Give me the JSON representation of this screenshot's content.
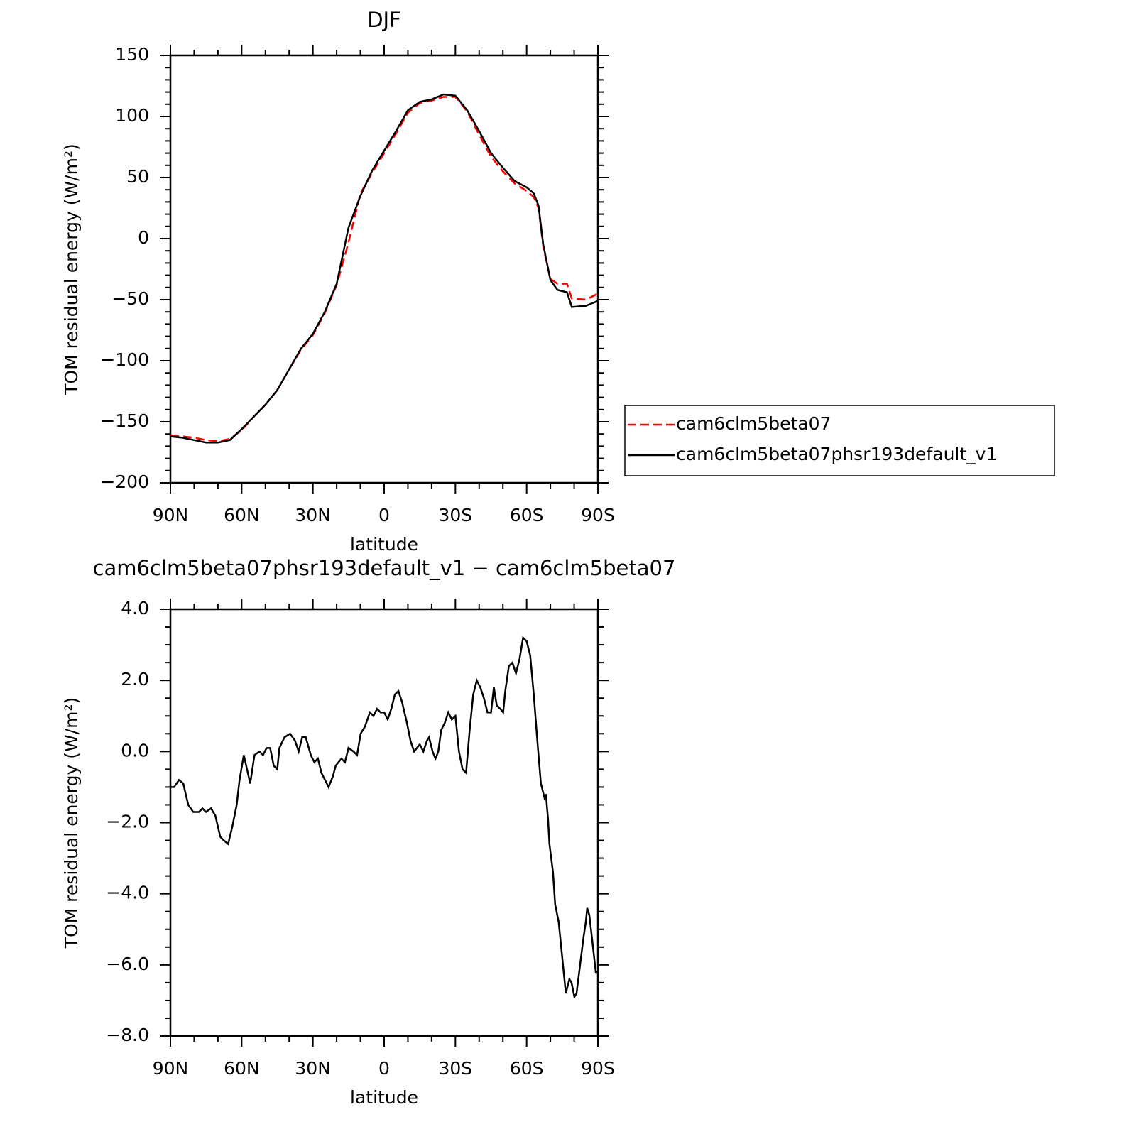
{
  "chart_data": [
    {
      "type": "line",
      "title": "DJF",
      "xlabel": "latitude",
      "ylabel": "TOM residual energy (W/m²)",
      "xlim": [
        90,
        -90
      ],
      "xticks": [
        {
          "value": 90,
          "label": "90N"
        },
        {
          "value": 60,
          "label": "60N"
        },
        {
          "value": 30,
          "label": "30N"
        },
        0,
        {
          "value": -30,
          "label": "30S"
        },
        {
          "value": -60,
          "label": "60S"
        },
        {
          "value": -90,
          "label": "90S"
        }
      ],
      "xminorticks": [
        80,
        70,
        50,
        40,
        20,
        10,
        -10,
        -20,
        -40,
        -50,
        -70,
        -80
      ],
      "ylim": [
        -200,
        150
      ],
      "yticks": [
        {
          "value": -200,
          "label": "−200"
        },
        {
          "value": -150,
          "label": "−150"
        },
        {
          "value": -100,
          "label": "−100"
        },
        {
          "value": -50,
          "label": "−50"
        },
        0,
        50,
        100,
        150
      ],
      "yminorticks": [
        -190,
        -180,
        -170,
        -160,
        -140,
        -130,
        -120,
        -110,
        -90,
        -80,
        -70,
        -60,
        -40,
        -30,
        -20,
        -10,
        10,
        20,
        30,
        40,
        60,
        70,
        80,
        90,
        110,
        120,
        130,
        140
      ],
      "legend": "right",
      "x": [
        90,
        85,
        80,
        75,
        70,
        65,
        60,
        55,
        50,
        45,
        40,
        35,
        30,
        25,
        20,
        15,
        10,
        5,
        0,
        -5,
        -10,
        -15,
        -20,
        -25,
        -30,
        -35,
        -40,
        -45,
        -50,
        -55,
        -60,
        -63,
        -65,
        -67,
        -70,
        -73,
        -77,
        -79,
        -85,
        -90
      ],
      "series": [
        {
          "name": "cam6clm5beta07",
          "color": "#ff0000",
          "style": "dashed",
          "values": [
            -161,
            -162,
            -163,
            -165,
            -166,
            -164,
            -157,
            -146,
            -136,
            -124,
            -107,
            -91,
            -79,
            -61,
            -38,
            -3,
            37,
            54,
            70,
            86,
            103,
            111,
            113,
            116,
            116,
            104,
            85,
            67,
            55,
            45,
            39,
            34,
            25,
            -7,
            -33,
            -37,
            -37,
            -49,
            -50,
            -45
          ]
        },
        {
          "name": "cam6clm5beta07phsr193default_v1",
          "color": "#000000",
          "style": "solid",
          "values": [
            -162,
            -163,
            -165,
            -167,
            -167,
            -165,
            -156,
            -146,
            -136,
            -124,
            -107,
            -90,
            -78,
            -60,
            -37,
            9,
            35,
            56,
            72,
            88,
            105,
            112,
            114,
            118,
            117,
            105,
            88,
            70,
            58,
            47,
            42,
            37,
            27,
            -5,
            -34,
            -42,
            -44,
            -56,
            -55,
            -51
          ]
        }
      ]
    },
    {
      "type": "line",
      "title": "cam6clm5beta07phsr193default_v1 − cam6clm5beta07",
      "xlabel": "latitude",
      "ylabel": "TOM residual energy (W/m²)",
      "xlim": [
        90,
        -90
      ],
      "xticks": [
        {
          "value": 90,
          "label": "90N"
        },
        {
          "value": 60,
          "label": "60N"
        },
        {
          "value": 30,
          "label": "30N"
        },
        0,
        {
          "value": -30,
          "label": "30S"
        },
        {
          "value": -60,
          "label": "60S"
        },
        {
          "value": -90,
          "label": "90S"
        }
      ],
      "xminorticks": [
        80,
        70,
        50,
        40,
        20,
        10,
        -10,
        -20,
        -40,
        -50,
        -70,
        -80
      ],
      "ylim": [
        -8,
        4
      ],
      "yticks": [
        {
          "value": -8,
          "label": "−8.0"
        },
        {
          "value": -6,
          "label": "−6.0"
        },
        {
          "value": -4,
          "label": "−4.0"
        },
        {
          "value": -2,
          "label": "−2.0"
        },
        {
          "value": 0,
          "label": "0.0"
        },
        {
          "value": 2,
          "label": "2.0"
        },
        {
          "value": 4,
          "label": "4.0"
        }
      ],
      "yminorticks": [
        3.5,
        3,
        2.5,
        1.5,
        1,
        0.5,
        -0.5,
        -1,
        -1.5,
        -2.5,
        -3,
        -3.5,
        -4.5,
        -5,
        -5.5,
        -6.5,
        -7,
        -7.5
      ],
      "color": "#000000",
      "x": [
        90,
        88.5,
        86.4,
        84.6,
        82.5,
        80.4,
        78,
        76.5,
        75,
        72.9,
        71.1,
        69,
        67.5,
        65.7,
        63.9,
        62.1,
        60.9,
        59.1,
        56.4,
        54.6,
        52.5,
        51,
        49.5,
        48,
        46.5,
        45,
        44.1,
        42,
        39.6,
        37.5,
        36,
        34.5,
        33,
        30.9,
        29.4,
        27.9,
        26.4,
        24.9,
        23.4,
        21.6,
        20.4,
        18,
        16.5,
        15,
        12.9,
        11.4,
        9.9,
        8.1,
        6,
        4.5,
        3,
        1.5,
        0,
        -1.5,
        -3,
        -4.5,
        -6,
        -7.5,
        -9.6,
        -11.1,
        -12.6,
        -13.8,
        -15,
        -16.5,
        -18,
        -18.9,
        -20.4,
        -21.6,
        -22.8,
        -24,
        -25.5,
        -27,
        -28.5,
        -30,
        -31.5,
        -33,
        -34.5,
        -36,
        -37.5,
        -39,
        -40.5,
        -42,
        -43.5,
        -45,
        -46.2,
        -47.4,
        -48.9,
        -50.1,
        -51,
        -52.5,
        -54,
        -55.5,
        -57,
        -58.5,
        -60,
        -61.5,
        -63,
        -64.5,
        -66,
        -67.5,
        -68.1,
        -69,
        -69.6,
        -71.1,
        -72,
        -73.5,
        -75,
        -76.5,
        -78,
        -78.9,
        -80.1,
        -81,
        -82.5,
        -84,
        -84.9,
        -85.5,
        -86.4,
        -87.6,
        -89.1,
        -90
      ],
      "values": [
        -1.0,
        -1.0,
        -0.8,
        -0.9,
        -1.5,
        -1.7,
        -1.7,
        -1.6,
        -1.7,
        -1.6,
        -1.8,
        -2.4,
        -2.5,
        -2.6,
        -2.1,
        -1.5,
        -0.8,
        -0.1,
        -0.9,
        -0.1,
        0.0,
        -0.1,
        0.1,
        0.1,
        -0.4,
        -0.5,
        0.1,
        0.4,
        0.5,
        0.3,
        0.0,
        0.4,
        0.4,
        -0.1,
        -0.3,
        -0.2,
        -0.6,
        -0.8,
        -1.0,
        -0.7,
        -0.4,
        -0.2,
        -0.3,
        0.1,
        0.0,
        -0.1,
        0.5,
        0.7,
        1.1,
        1.0,
        1.2,
        1.1,
        1.1,
        0.9,
        1.2,
        1.6,
        1.7,
        1.4,
        0.8,
        0.3,
        0.0,
        0.1,
        0.2,
        0.0,
        0.3,
        0.4,
        0.0,
        -0.2,
        0.0,
        0.6,
        0.8,
        1.1,
        0.9,
        1.0,
        0.0,
        -0.5,
        -0.6,
        0.6,
        1.6,
        2.0,
        1.8,
        1.5,
        1.1,
        1.1,
        1.8,
        1.3,
        1.2,
        1.1,
        1.7,
        2.4,
        2.5,
        2.2,
        2.6,
        3.2,
        3.1,
        2.7,
        1.6,
        0.3,
        -0.9,
        -1.3,
        -1.2,
        -1.9,
        -2.6,
        -3.4,
        -4.3,
        -4.8,
        -5.8,
        -6.8,
        -6.4,
        -6.5,
        -6.9,
        -6.8,
        -6.0,
        -5.2,
        -4.8,
        -4.4,
        -4.6,
        -5.3,
        -6.2,
        -6.2
      ]
    }
  ]
}
